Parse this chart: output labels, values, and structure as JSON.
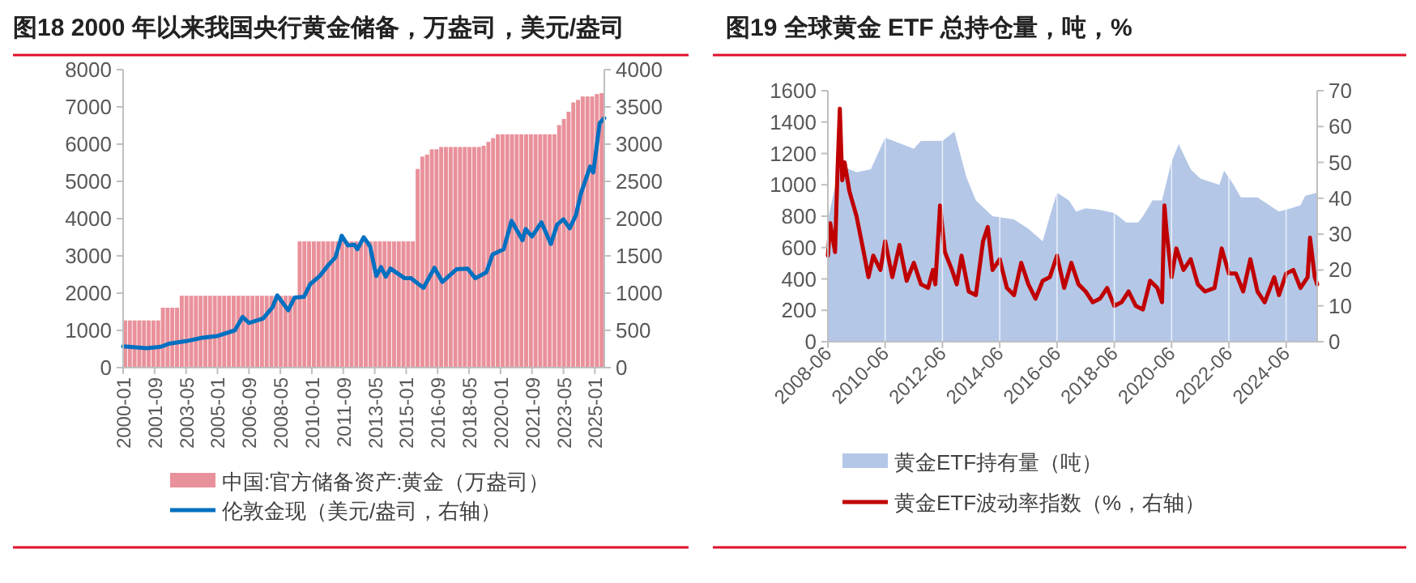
{
  "chart_data": [
    {
      "type": "bar",
      "title": "图18  2000 年以来我国央行黄金储备，万盎司，美元/盎司",
      "xlim": [
        "2000-01",
        "2025-07"
      ],
      "xticks": [
        "2000-01",
        "2001-09",
        "2003-05",
        "2005-01",
        "2006-09",
        "2008-05",
        "2010-01",
        "2011-09",
        "2013-05",
        "2015-01",
        "2016-09",
        "2018-05",
        "2020-01",
        "2021-09",
        "2023-05",
        "2025-01"
      ],
      "ylim": [
        0,
        8000
      ],
      "yticks": [
        0,
        1000,
        2000,
        3000,
        4000,
        5000,
        6000,
        7000,
        8000
      ],
      "y2lim": [
        0,
        4000
      ],
      "y2ticks": [
        0,
        500,
        1000,
        1500,
        2000,
        2500,
        3000,
        3500,
        4000
      ],
      "legend": "bottom",
      "series": [
        {
          "name": "中国:官方储备资产:黄金（万盎司）",
          "color": "#e9919b",
          "x": [
            "2000-01",
            "2000-04",
            "2000-07",
            "2000-10",
            "2001-01",
            "2001-04",
            "2001-07",
            "2001-10",
            "2002-01",
            "2002-04",
            "2002-07",
            "2002-10",
            "2003-01",
            "2003-04",
            "2003-07",
            "2003-10",
            "2004-01",
            "2004-04",
            "2004-07",
            "2004-10",
            "2005-01",
            "2005-04",
            "2005-07",
            "2005-10",
            "2006-01",
            "2006-04",
            "2006-07",
            "2006-10",
            "2007-01",
            "2007-04",
            "2007-07",
            "2007-10",
            "2008-01",
            "2008-04",
            "2008-07",
            "2008-10",
            "2009-01",
            "2009-04",
            "2009-07",
            "2009-10",
            "2010-01",
            "2010-04",
            "2010-07",
            "2010-10",
            "2011-01",
            "2011-04",
            "2011-07",
            "2011-10",
            "2012-01",
            "2012-04",
            "2012-07",
            "2012-10",
            "2013-01",
            "2013-04",
            "2013-07",
            "2013-10",
            "2014-01",
            "2014-04",
            "2014-07",
            "2014-10",
            "2015-01",
            "2015-04",
            "2015-07",
            "2015-10",
            "2016-01",
            "2016-04",
            "2016-07",
            "2016-10",
            "2017-01",
            "2017-04",
            "2017-07",
            "2017-10",
            "2018-01",
            "2018-04",
            "2018-07",
            "2018-10",
            "2019-01",
            "2019-04",
            "2019-07",
            "2019-10",
            "2020-01",
            "2020-04",
            "2020-07",
            "2020-10",
            "2021-01",
            "2021-04",
            "2021-07",
            "2021-10",
            "2022-01",
            "2022-04",
            "2022-07",
            "2022-10",
            "2023-01",
            "2023-04",
            "2023-07",
            "2023-10",
            "2024-01",
            "2024-04",
            "2024-07",
            "2024-10",
            "2025-01",
            "2025-04"
          ],
          "values": [
            1267,
            1267,
            1267,
            1267,
            1267,
            1267,
            1267,
            1267,
            1608,
            1608,
            1608,
            1608,
            1929,
            1929,
            1929,
            1929,
            1929,
            1929,
            1929,
            1929,
            1929,
            1929,
            1929,
            1929,
            1929,
            1929,
            1929,
            1929,
            1929,
            1929,
            1929,
            1929,
            1929,
            1929,
            1929,
            1929,
            1929,
            3389,
            3389,
            3389,
            3389,
            3389,
            3389,
            3389,
            3389,
            3389,
            3389,
            3389,
            3389,
            3389,
            3389,
            3389,
            3389,
            3389,
            3389,
            3389,
            3389,
            3389,
            3389,
            3389,
            3389,
            3389,
            5332,
            5666,
            5718,
            5862,
            5862,
            5924,
            5924,
            5924,
            5924,
            5924,
            5924,
            5924,
            5924,
            5924,
            5956,
            6061,
            6161,
            6264,
            6264,
            6264,
            6264,
            6264,
            6264,
            6264,
            6264,
            6264,
            6264,
            6264,
            6264,
            6264,
            6512,
            6676,
            6869,
            7120,
            7187,
            7280,
            7280,
            7280,
            7345,
            7370
          ]
        },
        {
          "name": "伦敦金现（美元/盎司，右轴）",
          "type": "line",
          "axis": "y2",
          "color": "#0070c0",
          "x": [
            "2000-01",
            "2001-04",
            "2002-01",
            "2002-06",
            "2003-05",
            "2004-03",
            "2005-01",
            "2005-12",
            "2006-05",
            "2006-09",
            "2007-06",
            "2007-12",
            "2008-03",
            "2008-10",
            "2009-02",
            "2009-08",
            "2009-12",
            "2010-06",
            "2010-12",
            "2011-04",
            "2011-08",
            "2011-12",
            "2012-04",
            "2012-06",
            "2012-10",
            "2013-02",
            "2013-06",
            "2013-09",
            "2013-12",
            "2014-03",
            "2014-12",
            "2015-04",
            "2015-12",
            "2016-07",
            "2016-12",
            "2017-09",
            "2018-04",
            "2018-09",
            "2019-04",
            "2019-08",
            "2020-03",
            "2020-08",
            "2021-03",
            "2021-05",
            "2021-09",
            "2022-03",
            "2022-09",
            "2023-01",
            "2023-05",
            "2023-09",
            "2024-01",
            "2024-04",
            "2024-10",
            "2024-12",
            "2025-04",
            "2025-07"
          ],
          "values": [
            285,
            260,
            280,
            320,
            355,
            400,
            425,
            500,
            680,
            600,
            660,
            810,
            970,
            770,
            940,
            950,
            1120,
            1230,
            1390,
            1480,
            1770,
            1640,
            1650,
            1590,
            1750,
            1630,
            1230,
            1350,
            1220,
            1330,
            1200,
            1200,
            1070,
            1340,
            1150,
            1320,
            1330,
            1200,
            1280,
            1520,
            1590,
            1970,
            1710,
            1860,
            1760,
            1950,
            1660,
            1920,
            1990,
            1870,
            2050,
            2330,
            2700,
            2620,
            3280,
            3350
          ]
        }
      ]
    },
    {
      "type": "area",
      "title": "图19  全球黄金 ETF 总持仓量，吨，%",
      "xlim": [
        "2008-06",
        "2025-07"
      ],
      "xticks": [
        "2008-06",
        "2010-06",
        "2012-06",
        "2014-06",
        "2016-06",
        "2018-06",
        "2020-06",
        "2022-06",
        "2024-06"
      ],
      "ylim": [
        0,
        1600
      ],
      "yticks": [
        0,
        200,
        400,
        600,
        800,
        1000,
        1200,
        1400,
        1600
      ],
      "y2lim": [
        0,
        70
      ],
      "y2ticks": [
        0,
        10,
        20,
        30,
        40,
        50,
        60,
        70
      ],
      "grid": "x",
      "legend": "bottom",
      "series": [
        {
          "name": "黄金ETF持有量（吨）",
          "color": "#b4c7e7",
          "x": [
            "2008-06",
            "2008-11",
            "2009-06",
            "2009-12",
            "2010-06",
            "2011-06",
            "2011-09",
            "2012-06",
            "2012-11",
            "2013-04",
            "2013-08",
            "2014-03",
            "2014-12",
            "2015-06",
            "2015-12",
            "2016-03",
            "2016-06",
            "2016-11",
            "2017-02",
            "2017-06",
            "2017-12",
            "2018-06",
            "2018-11",
            "2019-04",
            "2019-06",
            "2019-10",
            "2020-02",
            "2020-06",
            "2020-09",
            "2021-02",
            "2021-06",
            "2022-02",
            "2022-04",
            "2022-08",
            "2022-11",
            "2023-06",
            "2023-12",
            "2024-03",
            "2024-08",
            "2024-12",
            "2025-02",
            "2025-07"
          ],
          "values": [
            780,
            1125,
            1080,
            1100,
            1300,
            1230,
            1280,
            1280,
            1340,
            1050,
            900,
            800,
            780,
            720,
            640,
            800,
            950,
            900,
            830,
            850,
            840,
            820,
            760,
            760,
            800,
            900,
            900,
            1150,
            1260,
            1100,
            1040,
            1000,
            1090,
            1000,
            920,
            920,
            860,
            830,
            850,
            870,
            930,
            950
          ]
        },
        {
          "name": "黄金ETF波动率指数（%，右轴）",
          "type": "line",
          "axis": "y2",
          "color": "#c00000",
          "x": [
            "2008-06",
            "2008-07",
            "2008-09",
            "2008-10",
            "2008-11",
            "2008-12",
            "2009-01",
            "2009-03",
            "2009-06",
            "2009-09",
            "2009-11",
            "2010-01",
            "2010-04",
            "2010-06",
            "2010-09",
            "2010-12",
            "2011-03",
            "2011-06",
            "2011-09",
            "2011-12",
            "2012-02",
            "2012-03",
            "2012-05",
            "2012-07",
            "2012-10",
            "2012-12",
            "2013-02",
            "2013-05",
            "2013-08",
            "2013-11",
            "2014-01",
            "2014-03",
            "2014-06",
            "2014-09",
            "2014-12",
            "2015-03",
            "2015-06",
            "2015-09",
            "2015-12",
            "2016-03",
            "2016-06",
            "2016-09",
            "2016-12",
            "2017-03",
            "2017-06",
            "2017-09",
            "2017-12",
            "2018-03",
            "2018-06",
            "2018-09",
            "2018-12",
            "2019-03",
            "2019-06",
            "2019-09",
            "2019-12",
            "2020-02",
            "2020-03",
            "2020-04",
            "2020-06",
            "2020-08",
            "2020-11",
            "2021-02",
            "2021-05",
            "2021-08",
            "2021-12",
            "2022-03",
            "2022-06",
            "2022-09",
            "2022-12",
            "2023-03",
            "2023-06",
            "2023-09",
            "2024-01",
            "2024-03",
            "2024-06",
            "2024-09",
            "2024-12",
            "2025-03",
            "2025-04",
            "2025-06",
            "2025-07"
          ],
          "values": [
            24,
            33,
            25,
            47,
            65,
            45,
            50,
            42,
            35,
            25,
            18,
            24,
            20,
            28,
            18,
            27,
            17,
            22,
            16,
            15,
            20,
            16,
            38,
            25,
            20,
            16,
            24,
            14,
            13,
            28,
            32,
            20,
            23,
            15,
            13,
            22,
            16,
            12,
            17,
            18,
            24,
            15,
            22,
            16,
            14,
            11,
            12,
            15,
            10,
            11,
            14,
            10,
            9,
            17,
            15,
            11,
            38,
            30,
            18,
            26,
            20,
            23,
            16,
            14,
            15,
            26,
            19,
            19,
            14,
            23,
            14,
            11,
            18,
            13,
            19,
            20,
            15,
            18,
            29,
            18,
            16
          ]
        }
      ]
    }
  ]
}
